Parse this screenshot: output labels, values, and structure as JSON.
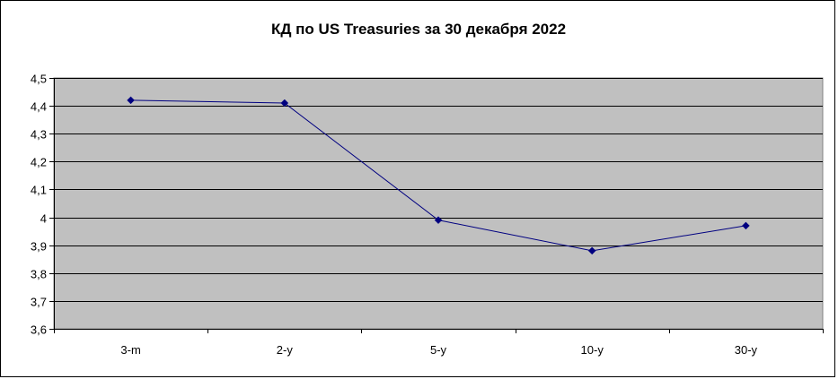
{
  "chart_data": {
    "type": "line",
    "title": "КД по US Treasuries за 30 декабря 2022",
    "categories": [
      "3-m",
      "2-y",
      "5-y",
      "10-y",
      "30-y"
    ],
    "series": [
      {
        "values": [
          4.42,
          4.41,
          3.99,
          3.88,
          3.97
        ]
      }
    ],
    "ylim": [
      3.6,
      4.5
    ],
    "yticks": [
      "3,6",
      "3,7",
      "3,8",
      "3,9",
      "4",
      "4,1",
      "4,2",
      "4,3",
      "4,4",
      "4,5"
    ],
    "ytick_values": [
      3.6,
      3.7,
      3.8,
      3.9,
      4.0,
      4.1,
      4.2,
      4.3,
      4.4,
      4.5
    ],
    "grid": true,
    "legend": "none",
    "colors": {
      "plot_background": "#c0c0c0",
      "gridline": "#000000",
      "series_line": "#000080",
      "marker": "#000080"
    }
  }
}
